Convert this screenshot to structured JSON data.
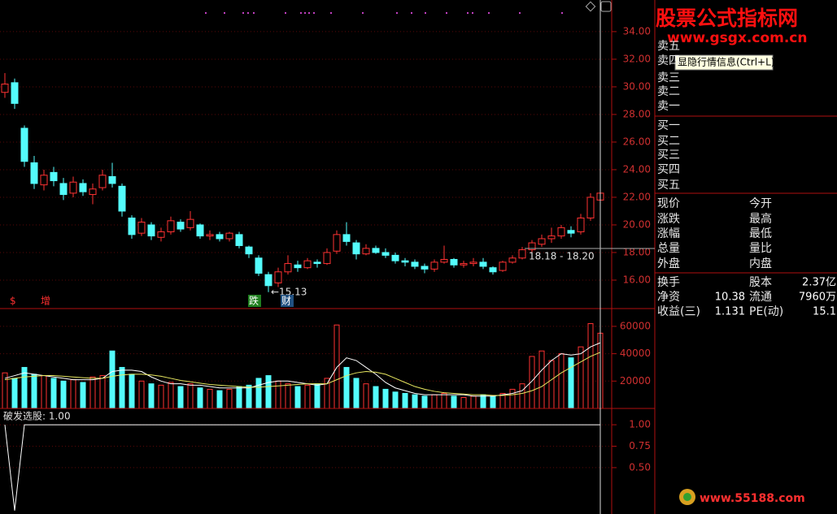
{
  "chart_data": [
    {
      "type": "candlestick",
      "open": [
        29.6,
        30.3,
        27.0,
        24.5,
        22.9,
        23.8,
        23.0,
        22.3,
        23.0,
        22.2,
        22.7,
        23.5,
        22.8,
        20.5,
        19.4,
        20.0,
        19.1,
        19.5,
        20.2,
        19.8,
        20.0,
        19.2,
        19.3,
        19.0,
        19.3,
        18.4,
        17.6,
        16.4,
        15.8,
        16.6,
        17.1,
        16.9,
        17.3,
        17.2,
        18.1,
        19.3,
        18.7,
        17.9,
        18.3,
        18.0,
        17.8,
        17.4,
        17.3,
        17.0,
        16.8,
        17.3,
        17.5,
        17.1,
        17.2,
        17.3,
        16.9,
        16.7,
        17.3,
        17.6,
        18.2,
        18.6,
        19.0,
        19.2,
        19.6,
        19.5,
        20.5,
        21.8
      ],
      "high": [
        31.0,
        30.6,
        27.2,
        25.0,
        24.0,
        24.2,
        23.4,
        23.5,
        23.3,
        23.0,
        24.0,
        24.5,
        23.0,
        20.7,
        20.5,
        20.2,
        19.8,
        20.6,
        20.4,
        21.0,
        20.1,
        19.6,
        19.5,
        19.5,
        19.5,
        18.5,
        17.8,
        16.6,
        16.9,
        17.8,
        17.4,
        17.6,
        17.5,
        18.3,
        19.6,
        20.2,
        18.9,
        18.6,
        18.5,
        18.3,
        18.0,
        17.6,
        17.5,
        17.2,
        17.5,
        18.5,
        17.6,
        17.4,
        17.6,
        17.6,
        17.0,
        17.4,
        17.8,
        18.4,
        18.9,
        19.3,
        19.8,
        20.0,
        19.9,
        20.8,
        22.3,
        23.3
      ],
      "low": [
        29.2,
        28.4,
        24.2,
        22.6,
        22.5,
        22.8,
        21.8,
        22.0,
        22.1,
        21.5,
        22.5,
        22.7,
        20.6,
        19.0,
        19.2,
        18.9,
        18.8,
        19.3,
        19.5,
        19.6,
        19.0,
        18.9,
        18.8,
        18.8,
        18.3,
        17.6,
        16.3,
        15.13,
        15.5,
        16.4,
        16.6,
        16.8,
        16.9,
        17.1,
        17.9,
        18.5,
        17.5,
        17.8,
        17.9,
        17.6,
        17.2,
        17.0,
        16.8,
        16.5,
        16.6,
        17.2,
        16.9,
        16.9,
        17.0,
        16.8,
        16.4,
        16.6,
        17.2,
        17.5,
        18.0,
        18.4,
        18.7,
        19.0,
        19.1,
        19.3,
        20.3,
        21.5
      ],
      "close": [
        30.2,
        28.8,
        24.6,
        23.0,
        23.6,
        23.2,
        22.2,
        23.1,
        22.4,
        22.6,
        23.6,
        23.0,
        21.0,
        19.3,
        20.2,
        19.2,
        19.5,
        20.3,
        19.7,
        20.4,
        19.2,
        19.3,
        19.0,
        19.4,
        18.5,
        17.9,
        16.5,
        15.6,
        16.6,
        17.2,
        16.9,
        17.4,
        17.2,
        18.0,
        19.3,
        18.8,
        17.9,
        18.3,
        18.0,
        17.8,
        17.4,
        17.3,
        17.0,
        16.8,
        17.3,
        17.5,
        17.1,
        17.2,
        17.3,
        17.0,
        16.6,
        17.3,
        17.6,
        18.2,
        18.7,
        19.0,
        19.2,
        19.8,
        19.4,
        20.5,
        22.0,
        22.3
      ],
      "up_color": "#ff3232",
      "down_color": "#54fcfc",
      "ylim": [
        13.94,
        36.29
      ],
      "yticks": [
        {
          "value": 16,
          "label": "16.00"
        },
        {
          "value": 18,
          "label": "18.00"
        },
        {
          "value": 20,
          "label": "20.00"
        },
        {
          "value": 22,
          "label": "22.00"
        },
        {
          "value": 24,
          "label": "24.00"
        },
        {
          "value": 26,
          "label": "26.00"
        },
        {
          "value": 28,
          "label": "28.00"
        },
        {
          "value": 30,
          "label": "30.00"
        },
        {
          "value": 32,
          "label": "32.00"
        },
        {
          "value": 34,
          "label": "34.00"
        }
      ],
      "grid": true,
      "annotations": [
        "←15.13",
        "18.18 - 18.20"
      ]
    },
    {
      "type": "bar",
      "values": [
        26000,
        22000,
        30000,
        25000,
        24000,
        22000,
        20000,
        21000,
        19000,
        23000,
        24000,
        42000,
        30000,
        25000,
        20000,
        18000,
        17000,
        19000,
        16000,
        18000,
        15000,
        14000,
        13000,
        14000,
        16000,
        17000,
        22000,
        24000,
        20000,
        18000,
        16000,
        17000,
        18000,
        22000,
        61000,
        30000,
        22000,
        18000,
        16000,
        14000,
        12000,
        11000,
        10000,
        9000,
        10000,
        11000,
        9000,
        8000,
        9000,
        10000,
        9000,
        11000,
        14000,
        18000,
        38000,
        42000,
        35000,
        40000,
        37000,
        45000,
        62000,
        55000
      ],
      "lines": [
        {
          "color": "#ffffff",
          "values": [
            22000,
            24000,
            26000,
            25000,
            24000,
            23000,
            22000,
            21000,
            21000,
            21000,
            22000,
            27000,
            28000,
            28000,
            27000,
            23000,
            20000,
            18000,
            18000,
            17000,
            17000,
            16000,
            15000,
            15000,
            15000,
            15000,
            17000,
            19000,
            20000,
            20000,
            19000,
            18000,
            17000,
            18000,
            30000,
            37000,
            35000,
            30000,
            25000,
            19000,
            15000,
            13000,
            11000,
            10000,
            10000,
            10000,
            10000,
            10000,
            9000,
            9000,
            9000,
            10000,
            11000,
            13000,
            20000,
            28000,
            35000,
            40000,
            39000,
            40000,
            45000,
            48000
          ]
        },
        {
          "color": "#e8e860",
          "values": [
            21000,
            22000,
            23000,
            23500,
            24000,
            24000,
            23500,
            23000,
            22500,
            22000,
            22000,
            23500,
            24500,
            25000,
            25000,
            24500,
            23500,
            22000,
            20500,
            19500,
            18500,
            17500,
            17000,
            16500,
            16000,
            15500,
            15500,
            16000,
            16500,
            17000,
            17500,
            18000,
            18000,
            18000,
            21000,
            24000,
            26000,
            27000,
            26500,
            25000,
            22000,
            19000,
            16000,
            14000,
            12500,
            11500,
            11000,
            10500,
            10000,
            10000,
            9500,
            9500,
            10000,
            11000,
            13000,
            16000,
            21000,
            26000,
            30000,
            34000,
            38000,
            41000
          ]
        }
      ],
      "ylim": [
        0,
        73000
      ],
      "yticks": [
        20000,
        40000,
        60000
      ],
      "grid": true
    },
    {
      "type": "line",
      "title": "破发选股: 1.00",
      "color": "#ffffff",
      "values": [
        1,
        0,
        1,
        1,
        1,
        1,
        1,
        1,
        1,
        1,
        1,
        1,
        1,
        1,
        1,
        1,
        1,
        1,
        1,
        1,
        1,
        1,
        1,
        1,
        1,
        1,
        1,
        1,
        1,
        1,
        1,
        1,
        1,
        1,
        1,
        1,
        1,
        1,
        1,
        1,
        1,
        1,
        1,
        1,
        1,
        1,
        1,
        1,
        1,
        1,
        1,
        1,
        1,
        1,
        1,
        1,
        1,
        1,
        1,
        1,
        1,
        1
      ],
      "ylim": [
        -0.04,
        1.19
      ],
      "yticks": [
        {
          "value": 0.5,
          "label": "0.50"
        },
        {
          "value": 0.75,
          "label": "0.75"
        },
        {
          "value": 1,
          "label": "1.00"
        }
      ],
      "grid": true
    }
  ],
  "signals": [
    "$",
    "增",
    "跌",
    "财"
  ],
  "logo": {
    "title": "股票公式指标网",
    "url": "www.gsgx.com.cn"
  },
  "tooltip": "显隐行情信息(Ctrl+L)",
  "order_book": {
    "sell": [
      "卖五",
      "卖四",
      "卖三",
      "卖二",
      "卖一"
    ],
    "buy": [
      "买一",
      "买二",
      "买三",
      "买四",
      "买五"
    ]
  },
  "quote": [
    {
      "l1": "现价",
      "l2": "今开"
    },
    {
      "l1": "涨跌",
      "l2": "最高"
    },
    {
      "l1": "涨幅",
      "l2": "最低"
    },
    {
      "l1": "总量",
      "l2": "量比"
    },
    {
      "l1": "外盘",
      "l2": "内盘"
    }
  ],
  "finance": [
    {
      "l1": "换手",
      "l2": "股本",
      "v2": "2.37亿"
    },
    {
      "l1": "净资",
      "v1": "10.38",
      "l2": "流通",
      "v2": "7960万"
    },
    {
      "l1": "收益(三)",
      "v1": "1.131",
      "l2": "PE(动)",
      "v2": "15.1"
    }
  ],
  "watermark": "www.55188.com"
}
